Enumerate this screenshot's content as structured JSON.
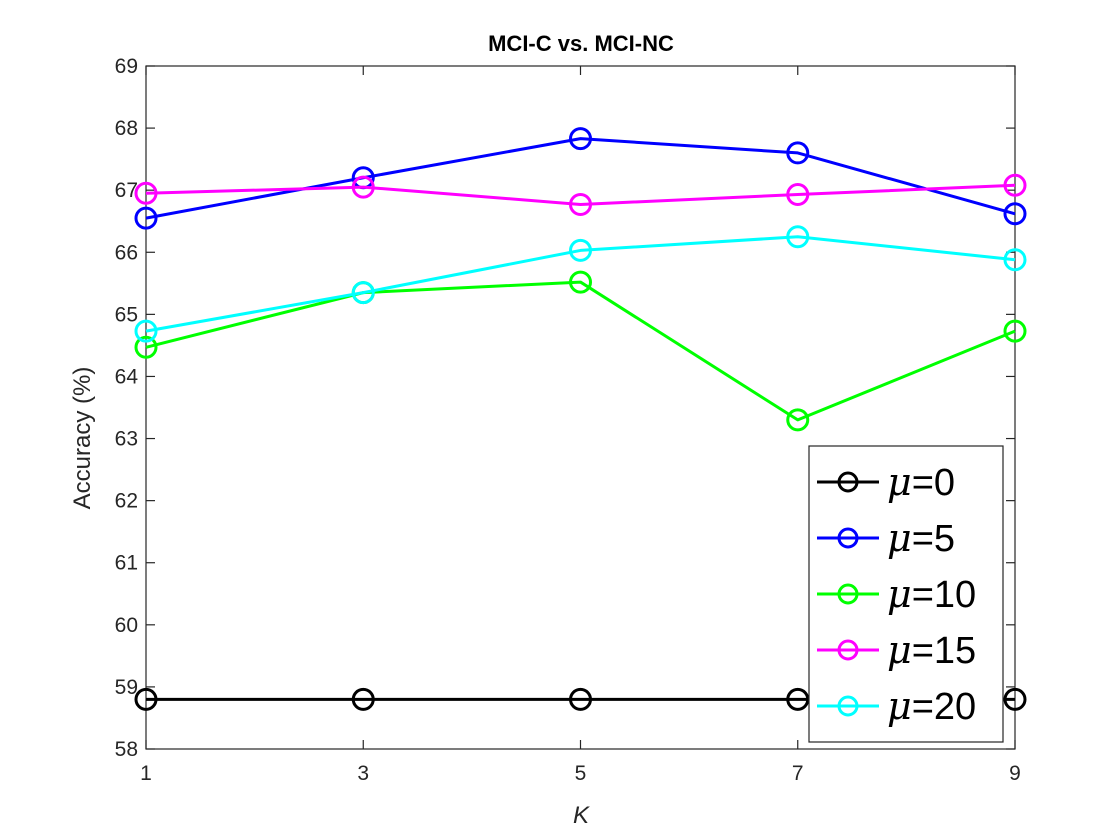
{
  "chart_data": {
    "type": "line",
    "title": "MCI-C vs. MCI-NC",
    "xlabel": "K",
    "ylabel": "Accuracy (%)",
    "x": [
      1,
      3,
      5,
      7,
      9
    ],
    "xticks": [
      "1",
      "3",
      "5",
      "7",
      "9"
    ],
    "yticks": [
      "58",
      "59",
      "60",
      "61",
      "62",
      "63",
      "64",
      "65",
      "66",
      "67",
      "68",
      "69"
    ],
    "xlim": [
      1,
      9
    ],
    "ylim": [
      58,
      69
    ],
    "grid": false,
    "legend_position": "bottom-right",
    "series": [
      {
        "name": "μ=0",
        "label_symbol": "μ",
        "label_value": "=0",
        "color": "#000000",
        "values": [
          58.8,
          58.8,
          58.8,
          58.8,
          58.8
        ]
      },
      {
        "name": "μ=5",
        "label_symbol": "μ",
        "label_value": "=5",
        "color": "#0000ff",
        "values": [
          66.55,
          67.2,
          67.83,
          67.6,
          66.62
        ]
      },
      {
        "name": "μ=10",
        "label_symbol": "μ",
        "label_value": "=10",
        "color": "#00ff00",
        "values": [
          64.47,
          65.35,
          65.52,
          63.3,
          64.73
        ]
      },
      {
        "name": "μ=15",
        "label_symbol": "μ",
        "label_value": "=15",
        "color": "#ff00ff",
        "values": [
          66.95,
          67.05,
          66.77,
          66.93,
          67.08
        ]
      },
      {
        "name": "μ=20",
        "label_symbol": "μ",
        "label_value": "=20",
        "color": "#00ffff",
        "values": [
          64.73,
          65.35,
          66.03,
          66.25,
          65.88
        ]
      }
    ]
  }
}
